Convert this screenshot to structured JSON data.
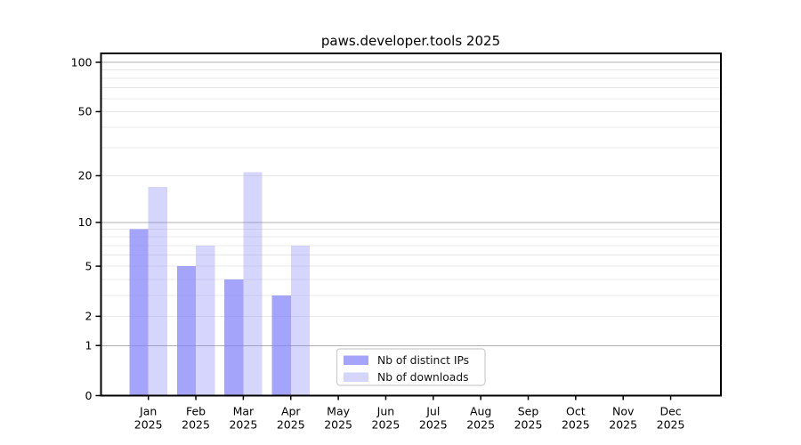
{
  "title": "paws.developer.tools 2025",
  "chart_data": {
    "type": "bar",
    "title": "paws.developer.tools 2025",
    "categories": [
      "Jan",
      "Feb",
      "Mar",
      "Apr",
      "May",
      "Jun",
      "Jul",
      "Aug",
      "Sep",
      "Oct",
      "Nov",
      "Dec"
    ],
    "x_tick_year": "2025",
    "series": [
      {
        "name": "Nb of distinct IPs",
        "slug": "distinct-ips",
        "color": "#8181f8",
        "alpha": 0.72,
        "values": [
          9,
          5,
          4,
          3,
          null,
          null,
          null,
          null,
          null,
          null,
          null,
          null
        ]
      },
      {
        "name": "Nb of downloads",
        "slug": "downloads",
        "color": "#8181f8",
        "alpha": 0.32,
        "values": [
          17,
          7,
          21,
          7,
          null,
          null,
          null,
          null,
          null,
          null,
          null,
          null
        ]
      }
    ],
    "y_axis": {
      "scale": "log1p",
      "ticks": [
        0,
        1,
        2,
        5,
        10,
        20,
        50,
        100
      ],
      "ylim": [
        0,
        113
      ],
      "major_gridlines": [
        1,
        10,
        100
      ],
      "minor_gridlines": [
        2,
        3,
        4,
        5,
        6,
        7,
        8,
        9,
        20,
        30,
        40,
        50,
        60,
        70,
        80,
        90
      ]
    },
    "grid": true,
    "legend_position": "bottom-center"
  },
  "colors": {
    "background": "#ffffff",
    "axis": "#000000",
    "grid_major": "#b0b0b0",
    "grid_minor": "#e9e9e9",
    "legend_border": "#cccccc",
    "legend_background": "#ffffff"
  }
}
